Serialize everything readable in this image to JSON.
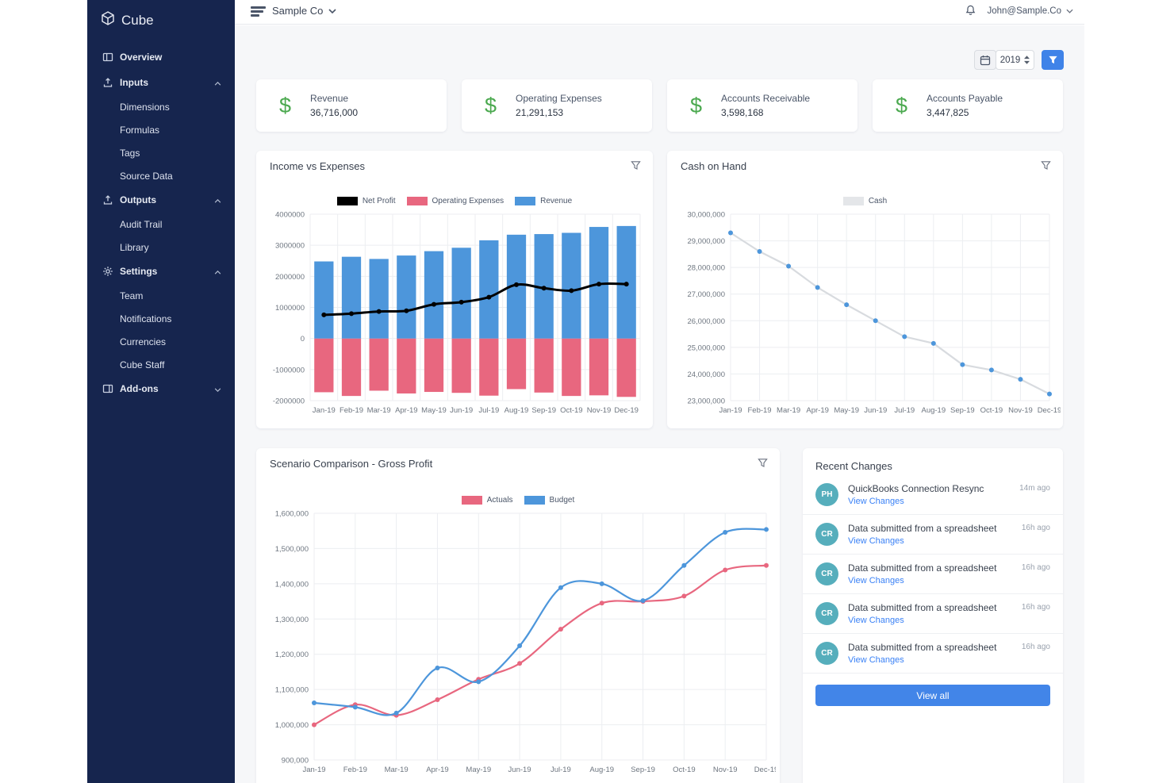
{
  "app": {
    "brand": "Cube",
    "company": "Sample Co",
    "user_email": "John@Sample.Co"
  },
  "colors": {
    "sidebar_navy": "#16254E",
    "accent_blue": "#3F83E8",
    "view_all_blue": "#4285E8",
    "chart_blue": "#4D96DB",
    "chart_pink": "#E8677F",
    "chart_black": "#000000",
    "cash_line_gray": "#D8DBDF",
    "avatar_teal": "#56AEBC",
    "dollar_green": "#4BA94F",
    "link_blue": "#3B82F6"
  },
  "sidebar": {
    "items": [
      {
        "label": "Overview",
        "level": "top",
        "icon": "overview-icon",
        "chevron": ""
      },
      {
        "label": "Inputs",
        "level": "top",
        "icon": "inputs-icon",
        "chevron": "up"
      },
      {
        "label": "Dimensions",
        "level": "child",
        "icon": "",
        "chevron": ""
      },
      {
        "label": "Formulas",
        "level": "child",
        "icon": "",
        "chevron": ""
      },
      {
        "label": "Tags",
        "level": "child",
        "icon": "",
        "chevron": ""
      },
      {
        "label": "Source Data",
        "level": "child",
        "icon": "",
        "chevron": ""
      },
      {
        "label": "Outputs",
        "level": "top",
        "icon": "outputs-icon",
        "chevron": "up"
      },
      {
        "label": "Audit Trail",
        "level": "child",
        "icon": "",
        "chevron": ""
      },
      {
        "label": "Library",
        "level": "child",
        "icon": "",
        "chevron": ""
      },
      {
        "label": "Settings",
        "level": "top",
        "icon": "settings-icon",
        "chevron": "up"
      },
      {
        "label": "Team",
        "level": "child",
        "icon": "",
        "chevron": ""
      },
      {
        "label": "Notifications",
        "level": "child",
        "icon": "",
        "chevron": ""
      },
      {
        "label": "Currencies",
        "level": "child",
        "icon": "",
        "chevron": ""
      },
      {
        "label": "Cube Staff",
        "level": "child",
        "icon": "",
        "chevron": ""
      },
      {
        "label": "Add-ons",
        "level": "top",
        "icon": "addons-icon",
        "chevron": "down"
      }
    ]
  },
  "topbar": {
    "menu_icon": "menu-icon",
    "bell_icon": "bell-icon"
  },
  "toolbar": {
    "year": "2019",
    "calendar_icon": "calendar-icon",
    "filter_icon": "filter-icon"
  },
  "kpis": [
    {
      "icon": "dollar-icon",
      "label": "Revenue",
      "value": "36,716,000"
    },
    {
      "icon": "dollar-icon",
      "label": "Operating Expenses",
      "value": "21,291,153"
    },
    {
      "icon": "dollar-icon",
      "label": "Accounts Receivable",
      "value": "3,598,168"
    },
    {
      "icon": "dollar-icon",
      "label": "Accounts Payable",
      "value": "3,447,825"
    }
  ],
  "chart_data": [
    {
      "type": "bar",
      "title": "Income vs Expenses",
      "categories": [
        "Jan-19",
        "Feb-19",
        "Mar-19",
        "Apr-19",
        "May-19",
        "Jun-19",
        "Jul-19",
        "Aug-19",
        "Sep-19",
        "Oct-19",
        "Nov-19",
        "Dec-19"
      ],
      "series": [
        {
          "name": "Net Profit",
          "role": "line",
          "color": "#000000",
          "values": [
            760000,
            800000,
            870000,
            890000,
            1100000,
            1170000,
            1330000,
            1730000,
            1620000,
            1540000,
            1750000,
            1750000
          ]
        },
        {
          "name": "Operating Expenses",
          "role": "bar",
          "color": "#E8677F",
          "values": [
            -1730000,
            -1850000,
            -1680000,
            -1770000,
            -1720000,
            -1750000,
            -1840000,
            -1630000,
            -1740000,
            -1850000,
            -1830000,
            -1880000
          ]
        },
        {
          "name": "Revenue",
          "role": "bar",
          "color": "#4D96DB",
          "values": [
            2480000,
            2630000,
            2560000,
            2670000,
            2810000,
            2920000,
            3160000,
            3340000,
            3360000,
            3400000,
            3590000,
            3620000
          ]
        }
      ],
      "ylim": [
        -2000000,
        4000000
      ],
      "ytick": 1000000,
      "ytick_format": "plain",
      "grid": true,
      "legend_position": "top",
      "xlabel": "",
      "ylabel": ""
    },
    {
      "type": "line",
      "title": "Cash on Hand",
      "categories": [
        "Jan-19",
        "Feb-19",
        "Mar-19",
        "Apr-19",
        "May-19",
        "Jun-19",
        "Jul-19",
        "Aug-19",
        "Sep-19",
        "Oct-19",
        "Nov-19",
        "Dec-19"
      ],
      "series": [
        {
          "name": "Cash",
          "role": "line",
          "color": "#D8DBDF",
          "marker_color": "#4D96DB",
          "swatch_color": "#E4E6E9",
          "values": [
            29300000,
            28600000,
            28050000,
            27250000,
            26600000,
            26000000,
            25400000,
            25150000,
            24350000,
            24150000,
            23800000,
            23250000
          ]
        }
      ],
      "ylim": [
        23000000,
        30000000
      ],
      "ytick": 1000000,
      "ytick_format": "comma",
      "grid": true,
      "legend_position": "top",
      "xlabel": "",
      "ylabel": ""
    },
    {
      "type": "line",
      "title": "Scenario Comparison - Gross Profit",
      "categories": [
        "Jan-19",
        "Feb-19",
        "Mar-19",
        "Apr-19",
        "May-19",
        "Jun-19",
        "Jul-19",
        "Aug-19",
        "Sep-19",
        "Oct-19",
        "Nov-19",
        "Dec-19"
      ],
      "series": [
        {
          "name": "Actuals",
          "role": "line",
          "color": "#E8677F",
          "smooth": true,
          "values": [
            1000000,
            1057000,
            1027000,
            1071000,
            1129000,
            1174000,
            1271000,
            1345000,
            1350000,
            1365000,
            1439000,
            1452000
          ]
        },
        {
          "name": "Budget",
          "role": "line",
          "color": "#4D96DB",
          "smooth": true,
          "values": [
            1062000,
            1050000,
            1033000,
            1161000,
            1122000,
            1224000,
            1389000,
            1400000,
            1352000,
            1452000,
            1546000,
            1554000
          ]
        }
      ],
      "ylim": [
        900000,
        1600000
      ],
      "ytick": 100000,
      "ytick_format": "comma",
      "grid": true,
      "legend_position": "top",
      "xlabel": "",
      "ylabel": ""
    }
  ],
  "recent_changes": {
    "title": "Recent Changes",
    "view_all_label": "View all",
    "items": [
      {
        "initials": "PH",
        "title": "QuickBooks Connection Resync",
        "link": "View Changes",
        "time": "14m ago"
      },
      {
        "initials": "CR",
        "title": "Data submitted from a spreadsheet",
        "link": "View Changes",
        "time": "16h ago"
      },
      {
        "initials": "CR",
        "title": "Data submitted from a spreadsheet",
        "link": "View Changes",
        "time": "16h ago"
      },
      {
        "initials": "CR",
        "title": "Data submitted from a spreadsheet",
        "link": "View Changes",
        "time": "16h ago"
      },
      {
        "initials": "CR",
        "title": "Data submitted from a spreadsheet",
        "link": "View Changes",
        "time": "16h ago"
      }
    ]
  }
}
